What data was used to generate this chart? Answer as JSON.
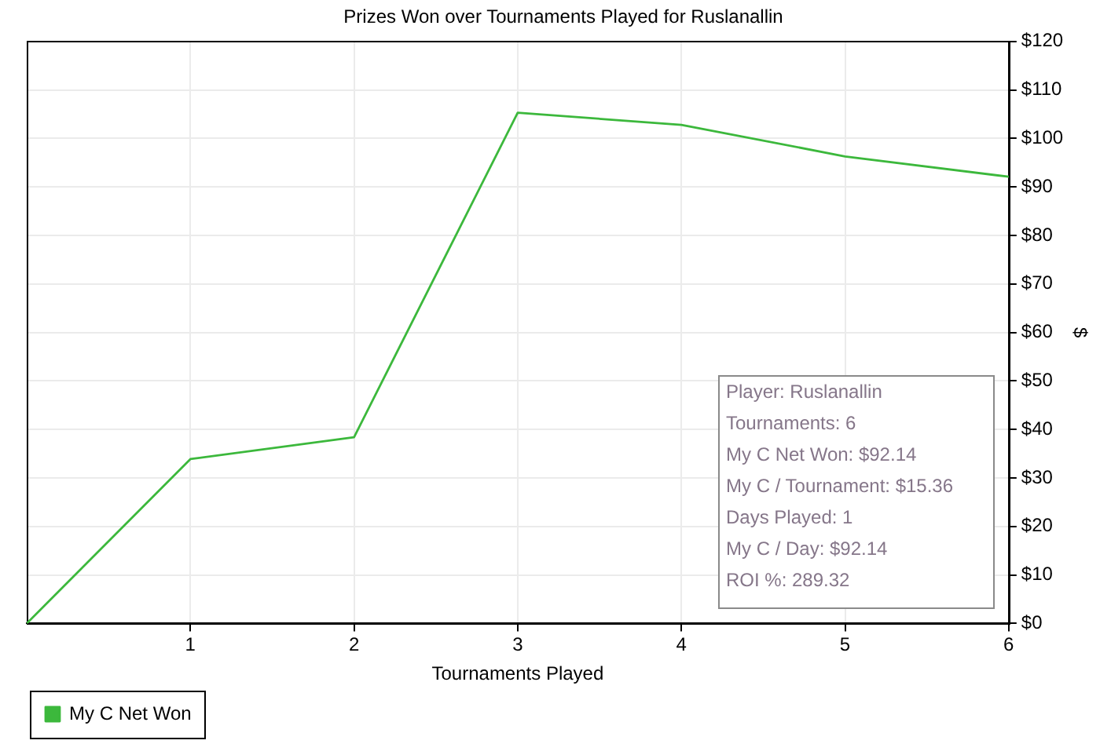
{
  "chart_data": {
    "type": "line",
    "title": "Prizes Won over Tournaments Played for Ruslanallin",
    "xlabel": "Tournaments Played",
    "ylabel": "$",
    "x": [
      0,
      1,
      2,
      3,
      4,
      5,
      6
    ],
    "series": [
      {
        "name": "My C Net Won",
        "color": "#3cb83c",
        "values": [
          0,
          33.9,
          38.4,
          105.3,
          102.8,
          96.3,
          92.1
        ]
      }
    ],
    "xlim": [
      0,
      6
    ],
    "xticks": [
      1,
      2,
      3,
      4,
      5,
      6
    ],
    "ylim": [
      0,
      120
    ],
    "yticks": [
      {
        "value": 0,
        "label": "$0"
      },
      {
        "value": 10,
        "label": "$10"
      },
      {
        "value": 20,
        "label": "$20"
      },
      {
        "value": 30,
        "label": "$30"
      },
      {
        "value": 40,
        "label": "$40"
      },
      {
        "value": 50,
        "label": "$50"
      },
      {
        "value": 60,
        "label": "$60"
      },
      {
        "value": 70,
        "label": "$70"
      },
      {
        "value": 80,
        "label": "$80"
      },
      {
        "value": 90,
        "label": "$90"
      },
      {
        "value": 100,
        "label": "$100"
      },
      {
        "value": 110,
        "label": "$110"
      },
      {
        "value": 120,
        "label": "$120"
      }
    ],
    "grid": true,
    "legend": "bottom left",
    "annotations": [
      "Player: Ruslanallin",
      "Tournaments: 6",
      "My C Net Won: $92.14",
      "My C / Tournament: $15.36",
      "Days Played: 1",
      "My C / Day: $92.14",
      "ROI %: 289.32"
    ]
  }
}
